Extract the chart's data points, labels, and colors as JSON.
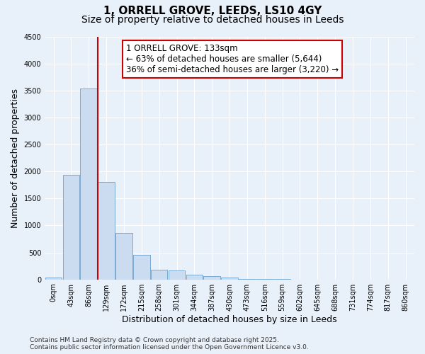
{
  "title_line1": "1, ORRELL GROVE, LEEDS, LS10 4GY",
  "title_line2": "Size of property relative to detached houses in Leeds",
  "xlabel": "Distribution of detached houses by size in Leeds",
  "ylabel": "Number of detached properties",
  "bar_labels": [
    "0sqm",
    "43sqm",
    "86sqm",
    "129sqm",
    "172sqm",
    "215sqm",
    "258sqm",
    "301sqm",
    "344sqm",
    "387sqm",
    "430sqm",
    "473sqm",
    "516sqm",
    "559sqm",
    "602sqm",
    "645sqm",
    "688sqm",
    "731sqm",
    "774sqm",
    "817sqm",
    "860sqm"
  ],
  "bar_values": [
    30,
    1940,
    3530,
    1810,
    855,
    450,
    175,
    165,
    90,
    65,
    40,
    5,
    5,
    3,
    2,
    2,
    2,
    2,
    2,
    2,
    2
  ],
  "bar_color": "#ccdcf0",
  "bar_edge_color": "#7aaad4",
  "bar_width": 0.95,
  "ylim": [
    0,
    4500
  ],
  "yticks": [
    0,
    500,
    1000,
    1500,
    2000,
    2500,
    3000,
    3500,
    4000,
    4500
  ],
  "vline_position": 2.5,
  "vline_color": "#cc0000",
  "annotation_text": "1 ORRELL GROVE: 133sqm\n← 63% of detached houses are smaller (5,644)\n36% of semi-detached houses are larger (3,220) →",
  "annotation_box_facecolor": "#ffffff",
  "annotation_box_edgecolor": "#cc0000",
  "footer_line1": "Contains HM Land Registry data © Crown copyright and database right 2025.",
  "footer_line2": "Contains public sector information licensed under the Open Government Licence v3.0.",
  "background_color": "#e8f0fa",
  "grid_color": "#ffffff",
  "title_fontsize": 11,
  "subtitle_fontsize": 10,
  "axis_label_fontsize": 9,
  "tick_fontsize": 7,
  "annotation_fontsize": 8.5,
  "footer_fontsize": 6.5
}
